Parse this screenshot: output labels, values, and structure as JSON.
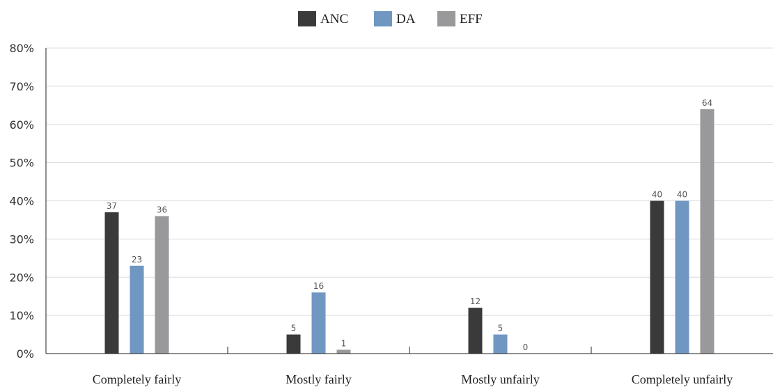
{
  "chart_data": {
    "type": "bar",
    "categories": [
      "Completely fairly",
      "Mostly fairly",
      "Mostly unfairly",
      "Completely unfairly"
    ],
    "series": [
      {
        "name": "ANC",
        "values": [
          37,
          5,
          12,
          40
        ],
        "color": "#3a3a3a"
      },
      {
        "name": "DA",
        "values": [
          23,
          16,
          5,
          40
        ],
        "color": "#7097c1"
      },
      {
        "name": "EFF",
        "values": [
          36,
          1,
          0,
          64
        ],
        "color": "#99999c"
      }
    ],
    "data_labels": [
      [
        "37",
        "23",
        "36"
      ],
      [
        "5",
        "16",
        "1"
      ],
      [
        "12",
        "5",
        "0"
      ],
      [
        "40",
        "40",
        "64"
      ]
    ],
    "y_ticks": [
      "0%",
      "10%",
      "20%",
      "30%",
      "40%",
      "50%",
      "60%",
      "70%",
      "80%"
    ],
    "ylim": [
      0,
      80
    ],
    "grid": true,
    "legend_position": "top-center"
  }
}
